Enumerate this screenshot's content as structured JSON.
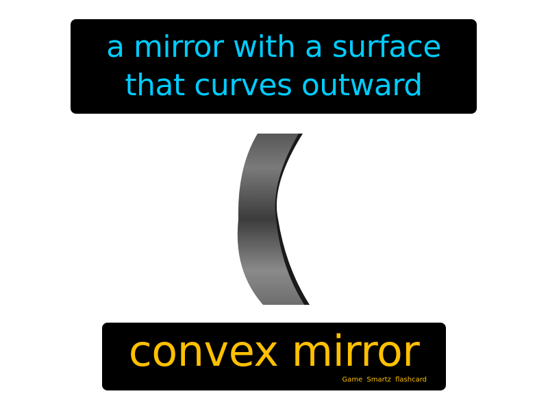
{
  "definition": {
    "line1": "a mirror with a surface",
    "line2": "that curves outward",
    "color": "#00ccff"
  },
  "illustration": {
    "icon": "convex-mirror-icon"
  },
  "term": {
    "text": "convex mirror",
    "color": "#ffc000"
  },
  "credit": "Game Smartz flashcard"
}
